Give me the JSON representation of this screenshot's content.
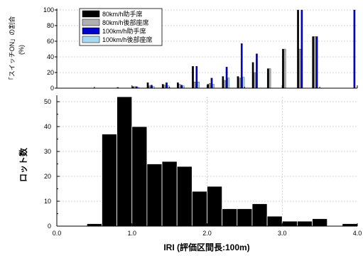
{
  "chart_data": [
    {
      "type": "bar",
      "ylabel": "「スイッチON」の割合",
      "yunit": "(%)",
      "ylim": [
        0,
        100
      ],
      "yticks": [
        0,
        20,
        40,
        60,
        80,
        100
      ],
      "xlim": [
        0,
        4
      ],
      "bin_width": 0.1,
      "grid": true,
      "legend_position": "top-left",
      "series": [
        {
          "name": "80km/h助手席",
          "color": "#000000",
          "points": [
            [
              0.8,
              1
            ],
            [
              1.0,
              2
            ],
            [
              1.2,
              7
            ],
            [
              1.4,
              5
            ],
            [
              1.6,
              7
            ],
            [
              1.8,
              28
            ],
            [
              2.0,
              5
            ],
            [
              2.2,
              15
            ],
            [
              2.4,
              15
            ],
            [
              2.6,
              33
            ],
            [
              2.8,
              25
            ],
            [
              3.0,
              50
            ],
            [
              3.2,
              100
            ],
            [
              3.4,
              66
            ]
          ]
        },
        {
          "name": "80km/h後部座席",
          "color": "#b0b0b0",
          "points": [
            [
              1.0,
              2
            ],
            [
              1.2,
              3
            ],
            [
              1.4,
              4
            ],
            [
              1.6,
              5
            ],
            [
              1.8,
              8
            ],
            [
              2.0,
              6
            ],
            [
              2.2,
              10
            ],
            [
              2.4,
              13
            ],
            [
              2.6,
              20
            ],
            [
              2.8,
              25
            ],
            [
              3.0,
              50
            ],
            [
              3.2,
              50
            ],
            [
              3.4,
              66
            ]
          ]
        },
        {
          "name": "100km/h助手席",
          "color": "#0000cc",
          "points": [
            [
              1.0,
              2
            ],
            [
              1.2,
              4
            ],
            [
              1.4,
              7
            ],
            [
              1.6,
              4
            ],
            [
              1.8,
              28
            ],
            [
              2.0,
              13
            ],
            [
              2.2,
              27
            ],
            [
              2.4,
              57
            ],
            [
              2.6,
              44
            ],
            [
              3.2,
              100
            ],
            [
              3.4,
              66
            ],
            [
              3.9,
              100
            ]
          ]
        },
        {
          "name": "100km/h後部座席",
          "color": "#a8d8f0",
          "points": [
            [
              1.0,
              1
            ],
            [
              1.2,
              2
            ],
            [
              1.4,
              3
            ],
            [
              1.6,
              3
            ],
            [
              1.8,
              8
            ],
            [
              2.0,
              5
            ],
            [
              2.2,
              13
            ],
            [
              2.4,
              14
            ]
          ]
        }
      ]
    },
    {
      "type": "bar",
      "xlabel": "IRI (評価区間長:100m)",
      "ylabel": "ロット数",
      "xlim": [
        0,
        4
      ],
      "ylim": [
        0,
        52
      ],
      "xticks": [
        "0.0",
        "1.0",
        "2.0",
        "3.0",
        "4.0"
      ],
      "yticks": [
        0,
        10,
        20,
        30,
        40,
        50
      ],
      "bin_width": 0.2,
      "grid": true,
      "color": "#000000",
      "bins": [
        [
          0.4,
          0.6,
          1
        ],
        [
          0.6,
          0.8,
          37
        ],
        [
          0.8,
          1.0,
          52
        ],
        [
          1.0,
          1.2,
          40
        ],
        [
          1.2,
          1.4,
          25
        ],
        [
          1.4,
          1.6,
          26
        ],
        [
          1.6,
          1.8,
          24
        ],
        [
          1.8,
          2.0,
          14
        ],
        [
          2.0,
          2.2,
          16
        ],
        [
          2.2,
          2.4,
          7
        ],
        [
          2.4,
          2.6,
          7
        ],
        [
          2.6,
          2.8,
          9
        ],
        [
          2.8,
          3.0,
          4
        ],
        [
          3.0,
          3.2,
          2
        ],
        [
          3.2,
          3.4,
          2
        ],
        [
          3.4,
          3.6,
          3
        ],
        [
          3.8,
          4.0,
          1
        ]
      ]
    }
  ]
}
